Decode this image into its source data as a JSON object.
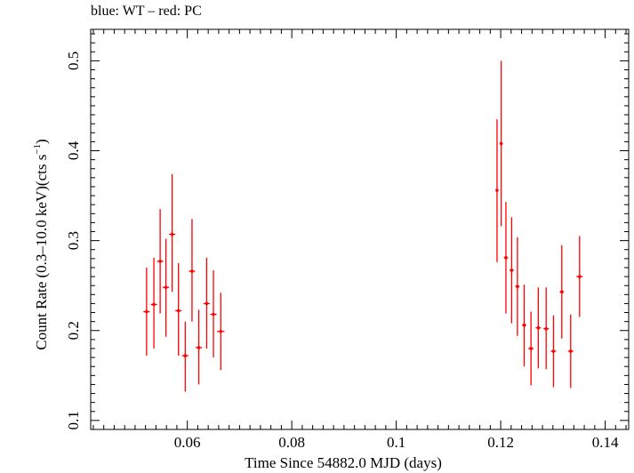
{
  "header": {
    "title": "blue: WT – red: PC"
  },
  "chart_data": {
    "type": "scatter",
    "title": "blue: WT – red: PC",
    "xlabel": "Time Since 54882.0 MJD (days)",
    "ylabel_main": "Count Rate (0.3–10.0 keV)(cts s",
    "ylabel_sup": "−1",
    "ylabel_tail": ")",
    "xlim": [
      0.0415,
      0.1445
    ],
    "ylim": [
      0.09,
      0.535
    ],
    "x_ticks": [
      {
        "value": 0.06,
        "label": "0.06"
      },
      {
        "value": 0.08,
        "label": "0.08"
      },
      {
        "value": 0.1,
        "label": "0.1"
      },
      {
        "value": 0.12,
        "label": "0.12"
      },
      {
        "value": 0.14,
        "label": "0.14"
      }
    ],
    "y_ticks": [
      {
        "value": 0.1,
        "label": "0.1"
      },
      {
        "value": 0.2,
        "label": "0.2"
      },
      {
        "value": 0.3,
        "label": "0.3"
      },
      {
        "value": 0.4,
        "label": "0.4"
      },
      {
        "value": 0.5,
        "label": "0.5"
      }
    ],
    "grid": false,
    "series": [
      {
        "color": "#ff0000",
        "points": [
          {
            "x": 0.0522,
            "xerr": 0.0006,
            "y": 0.221,
            "ylo": 0.172,
            "yhi": 0.27
          },
          {
            "x": 0.0536,
            "xerr": 0.0006,
            "y": 0.229,
            "ylo": 0.18,
            "yhi": 0.281
          },
          {
            "x": 0.0548,
            "xerr": 0.0006,
            "y": 0.277,
            "ylo": 0.219,
            "yhi": 0.335
          },
          {
            "x": 0.0559,
            "xerr": 0.0006,
            "y": 0.248,
            "ylo": 0.193,
            "yhi": 0.302
          },
          {
            "x": 0.0571,
            "xerr": 0.0006,
            "y": 0.307,
            "ylo": 0.243,
            "yhi": 0.374
          },
          {
            "x": 0.0583,
            "xerr": 0.0006,
            "y": 0.222,
            "ylo": 0.172,
            "yhi": 0.275
          },
          {
            "x": 0.0596,
            "xerr": 0.0006,
            "y": 0.172,
            "ylo": 0.132,
            "yhi": 0.21
          },
          {
            "x": 0.0609,
            "xerr": 0.0006,
            "y": 0.266,
            "ylo": 0.21,
            "yhi": 0.324
          },
          {
            "x": 0.0622,
            "xerr": 0.0006,
            "y": 0.181,
            "ylo": 0.14,
            "yhi": 0.223
          },
          {
            "x": 0.0637,
            "xerr": 0.0006,
            "y": 0.23,
            "ylo": 0.18,
            "yhi": 0.281
          },
          {
            "x": 0.065,
            "xerr": 0.0006,
            "y": 0.218,
            "ylo": 0.17,
            "yhi": 0.267
          },
          {
            "x": 0.0664,
            "xerr": 0.0007,
            "y": 0.199,
            "ylo": 0.156,
            "yhi": 0.242
          },
          {
            "x": 0.1193,
            "xerr": 0.0002,
            "y": 0.356,
            "ylo": 0.276,
            "yhi": 0.435
          },
          {
            "x": 0.1201,
            "xerr": 0.0002,
            "y": 0.408,
            "ylo": 0.316,
            "yhi": 0.5
          },
          {
            "x": 0.121,
            "xerr": 0.0004,
            "y": 0.281,
            "ylo": 0.219,
            "yhi": 0.343
          },
          {
            "x": 0.1221,
            "xerr": 0.0004,
            "y": 0.267,
            "ylo": 0.208,
            "yhi": 0.326
          },
          {
            "x": 0.1232,
            "xerr": 0.0004,
            "y": 0.249,
            "ylo": 0.194,
            "yhi": 0.304
          },
          {
            "x": 0.1245,
            "xerr": 0.0004,
            "y": 0.206,
            "ylo": 0.16,
            "yhi": 0.251
          },
          {
            "x": 0.1258,
            "xerr": 0.0005,
            "y": 0.18,
            "ylo": 0.139,
            "yhi": 0.221
          },
          {
            "x": 0.1272,
            "xerr": 0.0005,
            "y": 0.203,
            "ylo": 0.158,
            "yhi": 0.248
          },
          {
            "x": 0.1287,
            "xerr": 0.0005,
            "y": 0.202,
            "ylo": 0.157,
            "yhi": 0.248
          },
          {
            "x": 0.1301,
            "xerr": 0.0005,
            "y": 0.177,
            "ylo": 0.137,
            "yhi": 0.217
          },
          {
            "x": 0.1317,
            "xerr": 0.0004,
            "y": 0.243,
            "ylo": 0.191,
            "yhi": 0.295
          },
          {
            "x": 0.1334,
            "xerr": 0.0005,
            "y": 0.177,
            "ylo": 0.136,
            "yhi": 0.218
          },
          {
            "x": 0.1351,
            "xerr": 0.0006,
            "y": 0.26,
            "ylo": 0.215,
            "yhi": 0.305
          }
        ]
      }
    ]
  }
}
